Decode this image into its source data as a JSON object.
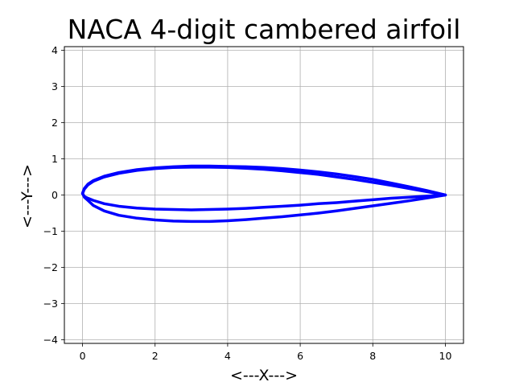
{
  "chart_data": {
    "type": "line",
    "title": "NACA 4-digit cambered airfoil",
    "xlabel": "<---X--->",
    "ylabel": "<---Y--->",
    "xlim": [
      -0.5,
      10.5
    ],
    "ylim": [
      -4.1,
      4.1
    ],
    "xticks": [
      0,
      2,
      4,
      6,
      8,
      10
    ],
    "xtick_labels": [
      "0",
      "2",
      "4",
      "6",
      "8",
      "10"
    ],
    "yticks": [
      -4,
      -3,
      -2,
      -1,
      0,
      1,
      2,
      3,
      4
    ],
    "ytick_labels": [
      "−4",
      "−3",
      "−2",
      "−1",
      "0",
      "1",
      "2",
      "3",
      "4"
    ],
    "grid": true,
    "line_color": "#0000ff",
    "series": [
      {
        "points": [
          [
            10.0,
            0.0
          ],
          [
            9.5,
            0.12
          ],
          [
            9.0,
            0.23
          ],
          [
            8.5,
            0.33
          ],
          [
            8.0,
            0.43
          ],
          [
            7.5,
            0.51
          ],
          [
            7.0,
            0.58
          ],
          [
            6.5,
            0.64
          ],
          [
            6.0,
            0.69
          ],
          [
            5.5,
            0.73
          ],
          [
            5.0,
            0.76
          ],
          [
            4.5,
            0.78
          ],
          [
            4.0,
            0.79
          ],
          [
            3.5,
            0.8
          ],
          [
            3.0,
            0.8
          ],
          [
            2.5,
            0.78
          ],
          [
            2.0,
            0.75
          ],
          [
            1.5,
            0.7
          ],
          [
            1.0,
            0.62
          ],
          [
            0.6,
            0.52
          ],
          [
            0.3,
            0.4
          ],
          [
            0.15,
            0.3
          ],
          [
            0.05,
            0.18
          ],
          [
            0.0,
            0.05
          ],
          [
            0.05,
            -0.06
          ],
          [
            0.15,
            -0.15
          ],
          [
            0.3,
            -0.29
          ],
          [
            0.6,
            -0.44
          ],
          [
            1.0,
            -0.56
          ],
          [
            1.5,
            -0.64
          ],
          [
            2.0,
            -0.69
          ],
          [
            2.5,
            -0.72
          ],
          [
            3.0,
            -0.73
          ],
          [
            3.5,
            -0.73
          ],
          [
            4.0,
            -0.71
          ],
          [
            4.5,
            -0.68
          ],
          [
            5.0,
            -0.64
          ],
          [
            5.5,
            -0.6
          ],
          [
            6.0,
            -0.55
          ],
          [
            6.5,
            -0.5
          ],
          [
            7.0,
            -0.44
          ],
          [
            7.5,
            -0.37
          ],
          [
            8.0,
            -0.3
          ],
          [
            8.5,
            -0.23
          ],
          [
            9.0,
            -0.16
          ],
          [
            9.5,
            -0.08
          ],
          [
            10.0,
            0.0
          ]
        ]
      },
      {
        "points": [
          [
            10.0,
            0.0
          ],
          [
            9.5,
            0.09
          ],
          [
            9.0,
            0.18
          ],
          [
            8.5,
            0.27
          ],
          [
            8.0,
            0.35
          ],
          [
            7.5,
            0.43
          ],
          [
            7.0,
            0.5
          ],
          [
            6.5,
            0.57
          ],
          [
            6.0,
            0.62
          ],
          [
            5.5,
            0.67
          ],
          [
            5.0,
            0.71
          ],
          [
            4.5,
            0.74
          ],
          [
            4.0,
            0.76
          ],
          [
            3.5,
            0.77
          ],
          [
            3.0,
            0.77
          ],
          [
            2.5,
            0.76
          ],
          [
            2.0,
            0.73
          ],
          [
            1.5,
            0.68
          ],
          [
            1.0,
            0.6
          ],
          [
            0.6,
            0.5
          ],
          [
            0.3,
            0.38
          ],
          [
            0.15,
            0.28
          ],
          [
            0.05,
            0.16
          ],
          [
            0.0,
            0.04
          ],
          [
            0.05,
            -0.04
          ],
          [
            0.15,
            -0.09
          ],
          [
            0.3,
            -0.15
          ],
          [
            0.6,
            -0.24
          ],
          [
            1.0,
            -0.31
          ],
          [
            1.5,
            -0.36
          ],
          [
            2.0,
            -0.39
          ],
          [
            2.5,
            -0.4
          ],
          [
            3.0,
            -0.41
          ],
          [
            3.5,
            -0.4
          ],
          [
            4.0,
            -0.39
          ],
          [
            4.5,
            -0.37
          ],
          [
            5.0,
            -0.34
          ],
          [
            5.5,
            -0.31
          ],
          [
            6.0,
            -0.28
          ],
          [
            6.5,
            -0.24
          ],
          [
            7.0,
            -0.21
          ],
          [
            7.5,
            -0.17
          ],
          [
            8.0,
            -0.13
          ],
          [
            8.5,
            -0.09
          ],
          [
            9.0,
            -0.06
          ],
          [
            9.5,
            -0.03
          ],
          [
            10.0,
            0.0
          ]
        ]
      }
    ]
  }
}
